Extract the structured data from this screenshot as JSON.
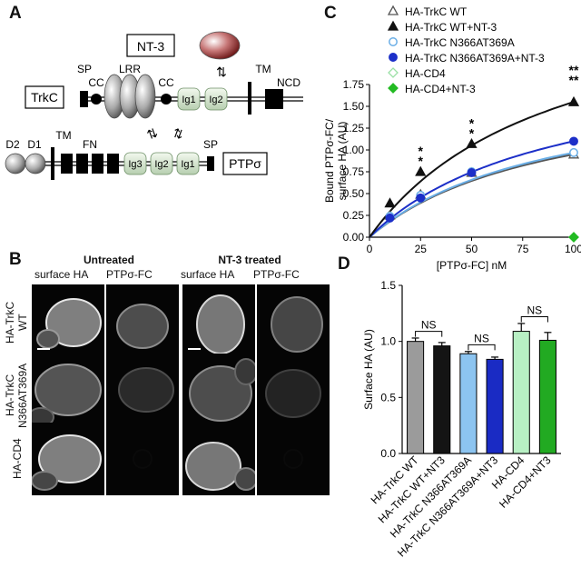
{
  "panels": {
    "a": "A",
    "b": "B",
    "c": "C",
    "d": "D"
  },
  "diagram": {
    "nt3": "NT-3",
    "trkc_box": "TrkC",
    "ptp_box": "PTPσ",
    "trkc_labels": {
      "sp": "SP",
      "cc1": "CC",
      "lrr": "LRR",
      "cc2": "CC",
      "tm": "TM",
      "ncd": "NCD",
      "ig1": "Ig1",
      "ig2": "Ig2"
    },
    "ptp_labels": {
      "d2": "D2",
      "d1": "D1",
      "tm": "TM",
      "fn": "FN",
      "sp": "SP",
      "ig3": "Ig3",
      "ig2": "Ig2",
      "ig1": "Ig1"
    }
  },
  "micrographs": {
    "group_untreated": "Untreated",
    "group_treated": "NT-3 treated",
    "col_surface": "surface HA",
    "col_ptp": "PTPσ-FC",
    "rows": [
      "HA-TrkC WT",
      "HA-TrkC N366AT369A",
      "HA-CD4"
    ],
    "row_lines": [
      [
        "HA-TrkC",
        "WT"
      ],
      [
        "HA-TrkC",
        "N366AT369A"
      ],
      [
        "HA-CD4"
      ]
    ]
  },
  "chart_data": [
    {
      "type": "line",
      "ylabel_lines": [
        "Bound PTPσ-FC/",
        "surface HA (AU)"
      ],
      "xlabel": "[PTPσ-FC] nM",
      "xlim": [
        0,
        100
      ],
      "ylim": [
        0,
        1.75
      ],
      "xticks": [
        "0",
        "25",
        "50",
        "75",
        "100"
      ],
      "yticks": [
        "0.00",
        "0.25",
        "0.50",
        "0.75",
        "1.00",
        "1.25",
        "1.50",
        "1.75"
      ],
      "x": [
        10,
        25,
        50,
        100
      ],
      "series": [
        {
          "name": "HA-TrkC WT",
          "marker": "triangle-open",
          "color": "#555555",
          "values": [
            0.25,
            0.49,
            0.74,
            0.95
          ]
        },
        {
          "name": "HA-TrkC WT+NT-3",
          "marker": "triangle",
          "color": "#111111",
          "values": [
            0.39,
            0.75,
            1.07,
            1.55
          ]
        },
        {
          "name": "HA-TrkC N366AT369A",
          "marker": "circle-open",
          "color": "#6aaee6",
          "values": [
            0.24,
            0.48,
            0.75,
            0.97
          ]
        },
        {
          "name": "HA-TrkC N366AT369A+NT-3",
          "marker": "circle",
          "color": "#1c2fc8",
          "values": [
            0.22,
            0.45,
            0.74,
            1.1
          ]
        },
        {
          "name": "HA-CD4",
          "marker": "diamond-open",
          "color": "#9be0a6",
          "values": [
            0.0,
            0.0,
            0.0,
            0.0
          ]
        },
        {
          "name": "HA-CD4+NT-3",
          "marker": "diamond",
          "color": "#22bb22",
          "values": [
            0.0,
            0.0,
            0.0,
            0.0
          ]
        }
      ],
      "annotations": [
        {
          "x": 25,
          "text": "**"
        },
        {
          "x": 50,
          "text": "**"
        },
        {
          "x": 100,
          "text": "****"
        }
      ]
    },
    {
      "type": "bar",
      "ylabel": "Surface HA (AU)",
      "ylim": [
        0,
        1.5
      ],
      "yticks": [
        "0.0",
        "0.5",
        "1.0",
        "1.5"
      ],
      "categories": [
        "HA-TrkC WT",
        "HA-TrkC WT+NT3",
        "HA-TrkC N366AT369A",
        "HA-TrkC N366AT369A+NT3",
        "HA-CD4",
        "HA-CD4+NT3"
      ],
      "values": [
        1.0,
        0.96,
        0.89,
        0.84,
        1.09,
        1.01
      ],
      "errors": [
        0.03,
        0.03,
        0.02,
        0.02,
        0.07,
        0.07
      ],
      "colors": [
        "#9b9b9b",
        "#141414",
        "#8cc4f0",
        "#1a2bc4",
        "#b8f0c4",
        "#22aa22"
      ],
      "annotations": [
        {
          "pair": [
            0,
            1
          ],
          "text": "NS"
        },
        {
          "pair": [
            2,
            3
          ],
          "text": "NS"
        },
        {
          "pair": [
            4,
            5
          ],
          "text": "NS"
        }
      ]
    }
  ]
}
